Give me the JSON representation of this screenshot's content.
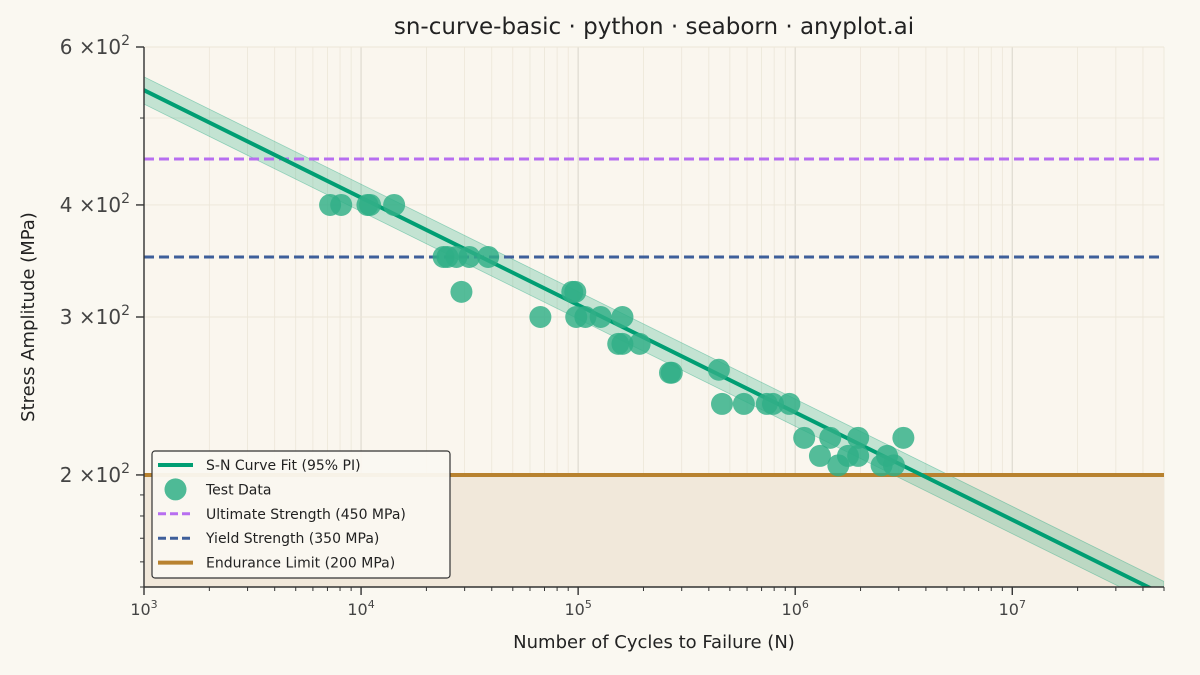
{
  "chart_data": {
    "type": "scatter",
    "title": "sn-curve-basic · python · seaborn · anyplot.ai",
    "xlabel": "Number of Cycles to Failure (N)",
    "ylabel": "Stress Amplitude (MPa)",
    "x_scale": "log",
    "y_scale": "log",
    "xlim": [
      1000,
      50000000
    ],
    "ylim": [
      150,
      600
    ],
    "x_ticks": [
      {
        "value": 1000,
        "base": "10",
        "exp": "3"
      },
      {
        "value": 10000,
        "base": "10",
        "exp": "4"
      },
      {
        "value": 100000,
        "base": "10",
        "exp": "5"
      },
      {
        "value": 1000000,
        "base": "10",
        "exp": "6"
      },
      {
        "value": 10000000,
        "base": "10",
        "exp": "7"
      }
    ],
    "y_ticks": [
      {
        "value": 200,
        "mant": "2",
        "base": "×10",
        "exp": "2"
      },
      {
        "value": 300,
        "mant": "3",
        "base": "×10",
        "exp": "2"
      },
      {
        "value": 400,
        "mant": "4",
        "base": "×10",
        "exp": "2"
      },
      {
        "value": 600,
        "mant": "6",
        "base": "×10",
        "exp": "2"
      }
    ],
    "grid": true,
    "legend_position": "lower-left",
    "legend": [
      {
        "label": "S-N Curve Fit (95% PI)",
        "kind": "line",
        "color": "#009E73"
      },
      {
        "label": "Test Data",
        "kind": "marker",
        "color": "#2FAF86"
      },
      {
        "label": "Ultimate Strength (450 MPa)",
        "kind": "dashed",
        "color": "#B76EF0"
      },
      {
        "label": "Yield Strength (350 MPa)",
        "kind": "dashed",
        "color": "#3E5F9A"
      },
      {
        "label": "Endurance Limit (200 MPa)",
        "kind": "line",
        "color": "#B8822F"
      }
    ],
    "series": [
      {
        "name": "Test Data",
        "color": "#2FAF86",
        "points": [
          {
            "x": 7200,
            "y": 400
          },
          {
            "x": 8100,
            "y": 400
          },
          {
            "x": 10700,
            "y": 400
          },
          {
            "x": 11000,
            "y": 400
          },
          {
            "x": 14200,
            "y": 400
          },
          {
            "x": 24000,
            "y": 350
          },
          {
            "x": 25000,
            "y": 350
          },
          {
            "x": 27500,
            "y": 350
          },
          {
            "x": 31500,
            "y": 350
          },
          {
            "x": 38500,
            "y": 350
          },
          {
            "x": 29000,
            "y": 320
          },
          {
            "x": 67000,
            "y": 300
          },
          {
            "x": 94000,
            "y": 320
          },
          {
            "x": 97000,
            "y": 320
          },
          {
            "x": 98000,
            "y": 300
          },
          {
            "x": 108000,
            "y": 300
          },
          {
            "x": 127000,
            "y": 300
          },
          {
            "x": 160000,
            "y": 300
          },
          {
            "x": 153000,
            "y": 280
          },
          {
            "x": 160000,
            "y": 280
          },
          {
            "x": 192000,
            "y": 280
          },
          {
            "x": 265000,
            "y": 260
          },
          {
            "x": 270000,
            "y": 260
          },
          {
            "x": 445000,
            "y": 262
          },
          {
            "x": 460000,
            "y": 240
          },
          {
            "x": 580000,
            "y": 240
          },
          {
            "x": 740000,
            "y": 240
          },
          {
            "x": 790000,
            "y": 240
          },
          {
            "x": 940000,
            "y": 240
          },
          {
            "x": 1100000,
            "y": 220
          },
          {
            "x": 1300000,
            "y": 210
          },
          {
            "x": 1450000,
            "y": 220
          },
          {
            "x": 1580000,
            "y": 205
          },
          {
            "x": 1750000,
            "y": 210
          },
          {
            "x": 1950000,
            "y": 210
          },
          {
            "x": 1950000,
            "y": 220
          },
          {
            "x": 2500000,
            "y": 205
          },
          {
            "x": 2650000,
            "y": 210
          },
          {
            "x": 2850000,
            "y": 205
          },
          {
            "x": 3150000,
            "y": 220
          }
        ]
      }
    ],
    "fit_curve": {
      "name": "S-N Curve Fit (95% PI)",
      "color": "#009E73",
      "points": [
        {
          "x": 1000,
          "y": 537
        },
        {
          "x": 50000000,
          "y": 147
        }
      ],
      "band_lower_ratio": 0.965,
      "band_upper_ratio": 1.035
    },
    "reference_lines": [
      {
        "name": "Ultimate Strength (450 MPa)",
        "y": 450,
        "color": "#B76EF0",
        "style": "dashed"
      },
      {
        "name": "Yield Strength (350 MPa)",
        "y": 350,
        "color": "#3E5F9A",
        "style": "dashed"
      },
      {
        "name": "Endurance Limit (200 MPa)",
        "y": 200,
        "color": "#B8822F",
        "style": "solid"
      }
    ],
    "endurance_fill_color": "#F1E8DA"
  }
}
